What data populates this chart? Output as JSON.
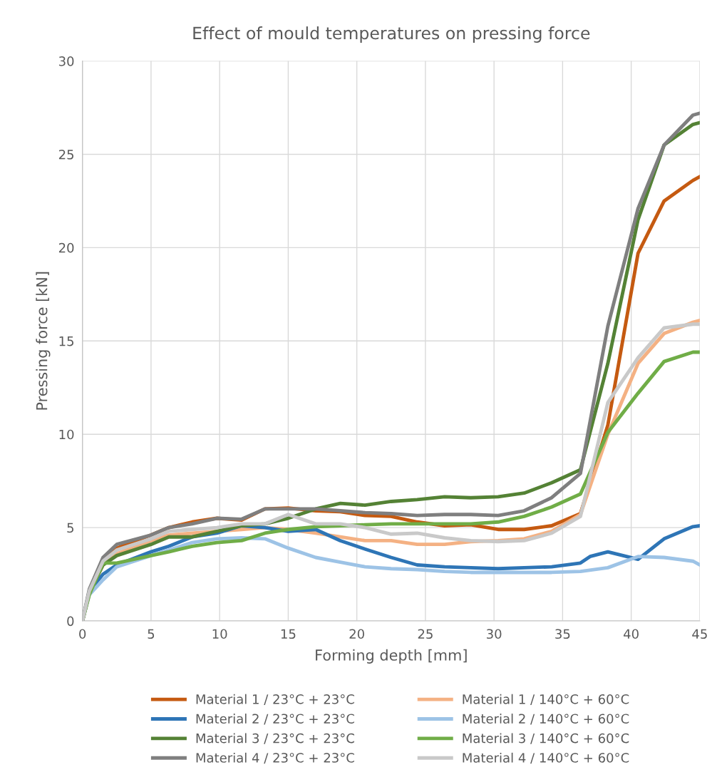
{
  "chart_data": {
    "type": "line",
    "title": "Effect of mould temperatures on pressing force",
    "xlabel": "Forming depth [mm]",
    "ylabel": "Pressing force [kN]",
    "x": [
      0,
      0.5,
      1.5,
      2.5,
      5,
      6.3,
      8,
      9.8,
      11.6,
      13.3,
      15,
      17,
      18.8,
      20.6,
      22.5,
      24.4,
      26.4,
      28.3,
      30.3,
      32.2,
      34.2,
      36.3,
      38.3,
      40.5,
      42.4,
      44.5,
      45
    ],
    "xlim": [
      0,
      45
    ],
    "xticks": [
      0,
      5,
      10,
      15,
      20,
      25,
      30,
      35,
      40,
      45
    ],
    "ylim": [
      0,
      30
    ],
    "yticks": [
      0,
      5,
      10,
      15,
      20,
      25,
      30
    ],
    "grid": true,
    "legend": "bottom",
    "marker": "none",
    "line_style": "solid",
    "series": [
      {
        "name": "Material 1 / 23°C + 23°C",
        "color": "#c55a11",
        "values": [
          0,
          1.5,
          3.2,
          3.9,
          4.6,
          5.0,
          5.3,
          5.5,
          5.4,
          6.0,
          6.05,
          5.9,
          5.85,
          5.65,
          5.6,
          5.3,
          5.1,
          5.15,
          4.9,
          4.9,
          5.1,
          5.75,
          10.5,
          19.7,
          22.5,
          23.6,
          23.8
        ]
      },
      {
        "name": "Material 1 / 140°C + 60°C",
        "color": "#f4b183",
        "values": [
          0,
          1.5,
          3.0,
          3.6,
          4.3,
          4.6,
          4.7,
          4.8,
          4.9,
          5.0,
          4.9,
          4.7,
          4.5,
          4.3,
          4.3,
          4.1,
          4.1,
          4.25,
          4.3,
          4.4,
          4.8,
          5.7,
          10.0,
          13.8,
          15.4,
          16.0,
          16.1
        ]
      },
      {
        "name": "Material 2 / 23°C + 23°C",
        "color": "#2e75b6",
        "x": [
          0,
          0.5,
          1.5,
          2.5,
          5,
          6.3,
          8,
          9.8,
          11.6,
          13.3,
          15,
          17,
          18.8,
          20.6,
          22.5,
          24.4,
          26.4,
          28.3,
          30.3,
          32.2,
          34.2,
          36.3,
          37,
          38.3,
          40.5,
          42.4,
          44.5,
          45
        ],
        "values": [
          0,
          1.6,
          2.5,
          3.0,
          3.7,
          4.0,
          4.5,
          4.7,
          5.1,
          5.0,
          4.8,
          4.9,
          4.3,
          3.85,
          3.4,
          3.0,
          2.9,
          2.85,
          2.8,
          2.85,
          2.9,
          3.1,
          3.45,
          3.7,
          3.3,
          4.4,
          5.05,
          5.1
        ]
      },
      {
        "name": "Material 2 / 140°C + 60°C",
        "color": "#9dc3e6",
        "values": [
          0,
          1.4,
          2.2,
          2.9,
          3.5,
          3.8,
          4.2,
          4.4,
          4.45,
          4.4,
          3.9,
          3.4,
          3.15,
          2.9,
          2.8,
          2.75,
          2.65,
          2.6,
          2.6,
          2.6,
          2.6,
          2.65,
          2.85,
          3.45,
          3.4,
          3.2,
          3.0
        ]
      },
      {
        "name": "Material 3 / 23°C + 23°C",
        "color": "#548235",
        "values": [
          0,
          1.5,
          3.0,
          3.5,
          4.1,
          4.5,
          4.5,
          4.8,
          5.1,
          5.2,
          5.5,
          6.0,
          6.3,
          6.2,
          6.4,
          6.5,
          6.65,
          6.6,
          6.65,
          6.85,
          7.4,
          8.1,
          13.8,
          21.5,
          25.5,
          26.6,
          26.7
        ]
      },
      {
        "name": "Material 3 / 140°C + 60°C",
        "color": "#70ad47",
        "values": [
          0,
          1.4,
          3.1,
          3.1,
          3.5,
          3.7,
          4.0,
          4.2,
          4.3,
          4.7,
          4.9,
          5.05,
          5.1,
          5.15,
          5.2,
          5.2,
          5.2,
          5.2,
          5.3,
          5.6,
          6.1,
          6.8,
          10.1,
          12.2,
          13.9,
          14.4,
          14.4
        ]
      },
      {
        "name": "Material 4 / 23°C + 23°C",
        "color": "#7f7f7f",
        "values": [
          0,
          1.7,
          3.4,
          4.1,
          4.6,
          5.0,
          5.2,
          5.5,
          5.45,
          6.0,
          6.0,
          6.0,
          5.9,
          5.8,
          5.75,
          5.65,
          5.7,
          5.7,
          5.65,
          5.9,
          6.6,
          7.9,
          15.8,
          22.1,
          25.5,
          27.1,
          27.2
        ]
      },
      {
        "name": "Material 4 / 140°C + 60°C",
        "color": "#c9c9c9",
        "values": [
          0,
          1.6,
          3.2,
          3.8,
          4.4,
          4.8,
          4.9,
          5.0,
          5.2,
          5.2,
          5.7,
          5.2,
          5.2,
          5.0,
          4.65,
          4.7,
          4.45,
          4.3,
          4.25,
          4.3,
          4.7,
          5.6,
          11.7,
          14.1,
          15.7,
          15.9,
          15.9
        ]
      }
    ]
  }
}
